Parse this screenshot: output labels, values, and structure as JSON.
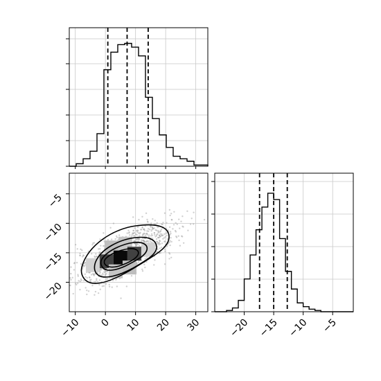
{
  "chart_data": [
    {
      "type": "histogram",
      "panel": "top-left",
      "variable": "x",
      "xlim": [
        -12,
        34
      ],
      "bin_edges": [
        -12,
        -9.7,
        -7.4,
        -5.1,
        -2.8,
        -0.5,
        1.8,
        4.1,
        6.4,
        8.7,
        11.0,
        13.3,
        15.6,
        17.9,
        20.2,
        22.5,
        24.8,
        27.1,
        29.4,
        31.7,
        34
      ],
      "counts": [
        0,
        0.02,
        0.06,
        0.12,
        0.26,
        0.77,
        0.91,
        0.97,
        0.98,
        0.95,
        0.88,
        0.55,
        0.38,
        0.25,
        0.15,
        0.08,
        0.06,
        0.04,
        0.01,
        0.01
      ],
      "quantile_lines": [
        0.8,
        7.2,
        14.2
      ],
      "grid": true,
      "y_tick_labels_shown": false
    },
    {
      "type": "heatmap",
      "panel": "bottom-left",
      "x_variable": "x",
      "y_variable": "y",
      "xlim": [
        -12,
        34
      ],
      "ylim": [
        -25,
        -1.5
      ],
      "xticks": [
        -10,
        0,
        10,
        20,
        30
      ],
      "yticks": [
        -5,
        -10,
        -15,
        -20
      ],
      "peak": {
        "x": 5,
        "y": -15.8
      },
      "contour_levels": [
        "outer",
        "second",
        "third",
        "inner"
      ],
      "grid": true
    },
    {
      "type": "histogram",
      "panel": "bottom-right",
      "variable": "y",
      "xlim": [
        -25,
        -1.5
      ],
      "bin_edges": [
        -25,
        -24,
        -23,
        -22,
        -21,
        -20,
        -19,
        -18,
        -17,
        -16,
        -15,
        -14,
        -13,
        -12,
        -11,
        -10,
        -9,
        -8,
        -7,
        -6,
        -5,
        -4,
        -3,
        -2,
        -1.5
      ],
      "counts": [
        0,
        0,
        0.01,
        0.03,
        0.09,
        0.26,
        0.45,
        0.65,
        0.83,
        0.94,
        0.89,
        0.58,
        0.32,
        0.18,
        0.07,
        0.04,
        0.02,
        0.01,
        0,
        0,
        0,
        0,
        0,
        0
      ],
      "xticks": [
        -20,
        -15,
        -10,
        -5
      ],
      "quantile_lines": [
        -17.4,
        -15.0,
        -12.7
      ],
      "grid": true,
      "y_tick_labels_shown": false
    }
  ]
}
